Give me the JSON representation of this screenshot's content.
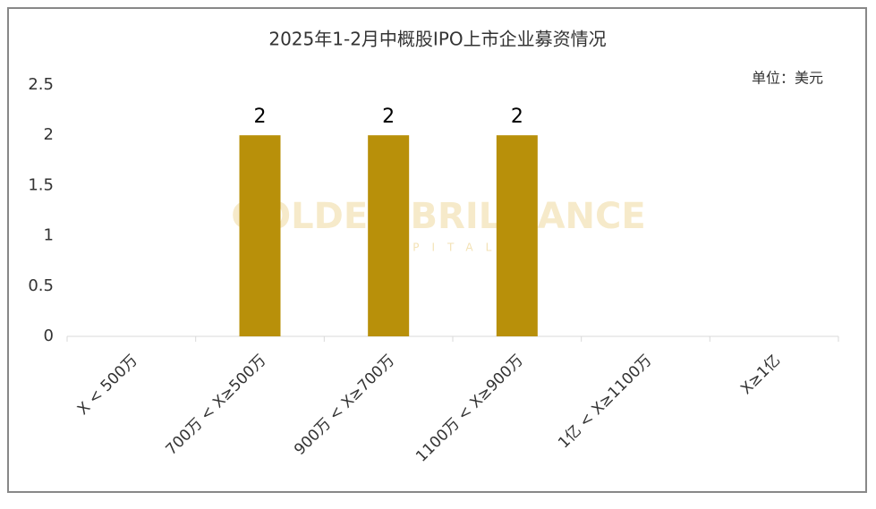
{
  "chart_data": {
    "type": "bar",
    "title": "2025年1-2月中概股IPO上市企业募资情况",
    "unit": "单位：美元",
    "watermark": "GOLDEN BRILLIANCE",
    "watermark_sub": "CAPITAL",
    "categories": [
      "X < 500万",
      "700万 < X≥500万",
      "900万 < X≥700万",
      "1100万 < X≥900万",
      "1亿 < X≥1100万",
      "X≥1亿"
    ],
    "values": [
      0,
      2,
      2,
      2,
      0,
      0
    ],
    "color": "#b8900a",
    "ylim": [
      0,
      2.5
    ],
    "yticks": [
      0,
      0.5,
      1,
      1.5,
      2,
      2.5
    ],
    "grid": false
  }
}
